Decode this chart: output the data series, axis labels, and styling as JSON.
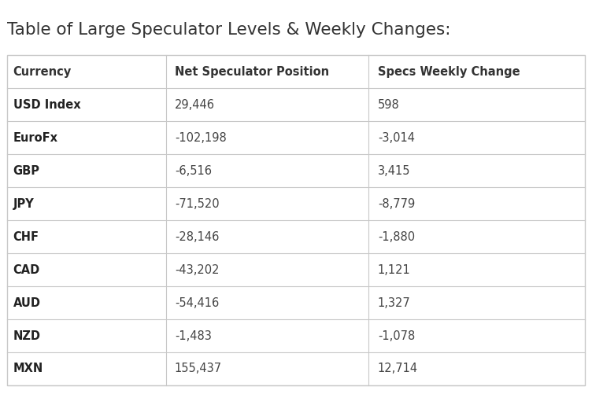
{
  "title": "Table of Large Speculator Levels & Weekly Changes:",
  "columns": [
    "Currency",
    "Net Speculator Position",
    "Specs Weekly Change"
  ],
  "rows": [
    [
      "USD Index",
      "29,446",
      "598"
    ],
    [
      "EuroFx",
      "-102,198",
      "-3,014"
    ],
    [
      "GBP",
      "-6,516",
      "3,415"
    ],
    [
      "JPY",
      "-71,520",
      "-8,779"
    ],
    [
      "CHF",
      "-28,146",
      "-1,880"
    ],
    [
      "CAD",
      "-43,202",
      "1,121"
    ],
    [
      "AUD",
      "-54,416",
      "1,327"
    ],
    [
      "NZD",
      "-1,483",
      "-1,078"
    ],
    [
      "MXN",
      "155,437",
      "12,714"
    ]
  ],
  "title_color": "#333333",
  "header_color": "#333333",
  "currency_color": "#222222",
  "value_color": "#444444",
  "background_color": "#ffffff",
  "border_color": "#c8c8c8",
  "title_fontsize": 15.5,
  "header_fontsize": 10.5,
  "cell_fontsize": 10.5
}
